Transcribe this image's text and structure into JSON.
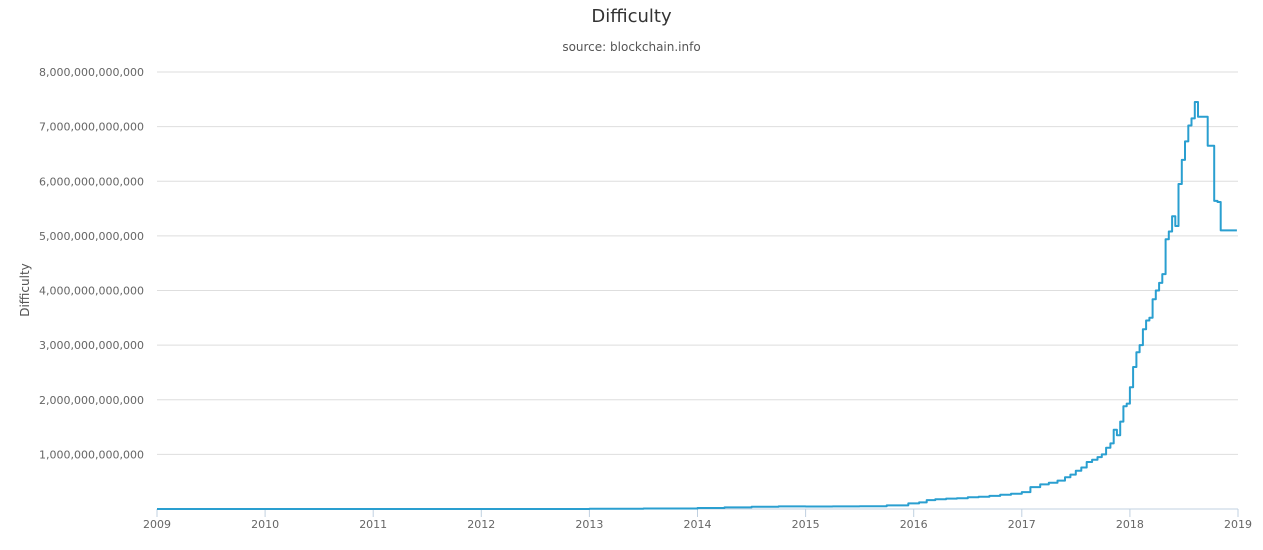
{
  "chart_data": {
    "type": "line",
    "title": "Difficulty",
    "subtitle": "source: blockchain.info",
    "xlabel": "",
    "ylabel": "Difficulty",
    "xlim": [
      2009.0,
      2019.0
    ],
    "ylim": [
      0,
      8000000000000
    ],
    "x_ticks": [
      "2009",
      "2010",
      "2011",
      "2012",
      "2013",
      "2014",
      "2015",
      "2016",
      "2017",
      "2018",
      "2019"
    ],
    "y_ticks": [
      "1,000,000,000,000",
      "2,000,000,000,000",
      "3,000,000,000,000",
      "4,000,000,000,000",
      "5,000,000,000,000",
      "6,000,000,000,000",
      "7,000,000,000,000",
      "8,000,000,000,000"
    ],
    "grid": true,
    "legend": "none",
    "line_color": "#2a9fd0",
    "step": true,
    "series": [
      {
        "x": [
          2009.0,
          2013.0,
          2013.5,
          2014.0,
          2014.25,
          2014.5,
          2014.75,
          2015.0,
          2015.25,
          2015.5,
          2015.75,
          2015.95,
          2016.05,
          2016.12,
          2016.2,
          2016.3,
          2016.4,
          2016.5,
          2016.6,
          2016.7,
          2016.8,
          2016.9,
          2017.0,
          2017.08,
          2017.17,
          2017.25,
          2017.33,
          2017.4,
          2017.45,
          2017.5,
          2017.55,
          2017.6,
          2017.65,
          2017.7,
          2017.74,
          2017.78,
          2017.82,
          2017.85,
          2017.88,
          2017.91,
          2017.94,
          2017.97,
          2018.0,
          2018.03,
          2018.06,
          2018.09,
          2018.12,
          2018.15,
          2018.18,
          2018.21,
          2018.24,
          2018.27,
          2018.3,
          2018.33,
          2018.36,
          2018.39,
          2018.42,
          2018.45,
          2018.48,
          2018.51,
          2018.54,
          2018.57,
          2018.6,
          2018.63,
          2018.66,
          2018.69,
          2018.72,
          2018.75,
          2018.78,
          2018.81,
          2018.84,
          2018.87,
          2018.9,
          2018.93,
          2018.96,
          2018.99
        ],
        "y": [
          0,
          3000000000,
          9000000000,
          19000000000,
          30000000000,
          40000000000,
          47000000000,
          45000000000,
          47000000000,
          52000000000,
          65000000000,
          103000000000,
          120000000000,
          163000000000,
          178000000000,
          190000000000,
          198000000000,
          215000000000,
          225000000000,
          240000000000,
          260000000000,
          280000000000,
          310000000000,
          400000000000,
          450000000000,
          480000000000,
          520000000000,
          580000000000,
          630000000000,
          700000000000,
          760000000000,
          860000000000,
          900000000000,
          950000000000,
          1000000000000,
          1120000000000,
          1200000000000,
          1450000000000,
          1350000000000,
          1600000000000,
          1880000000000,
          1930000000000,
          2230000000000,
          2600000000000,
          2870000000000,
          3000000000000,
          3290000000000,
          3450000000000,
          3500000000000,
          3840000000000,
          4000000000000,
          4140000000000,
          4300000000000,
          4940000000000,
          5080000000000,
          5360000000000,
          5180000000000,
          5950000000000,
          6390000000000,
          6730000000000,
          7020000000000,
          7150000000000,
          7450000000000,
          7180000000000,
          7180000000000,
          7180000000000,
          6650000000000,
          6650000000000,
          5640000000000,
          5620000000000,
          5100000000000,
          5100000000000,
          5100000000000,
          5100000000000,
          5100000000000,
          5100000000000
        ]
      }
    ]
  }
}
